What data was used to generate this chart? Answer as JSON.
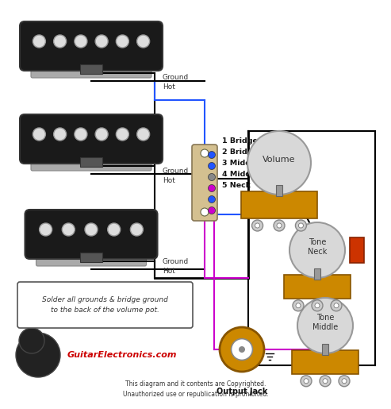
{
  "bg_color": "#ffffff",
  "switch_text": [
    "1 Bridge",
    "2 Bridge+Middle",
    "3 Middle",
    "4 Middle+Neck",
    "5 Neck"
  ],
  "solder_note": "Solder all grounds & bridge ground\nto the back of the volume pot.",
  "copyright_text": "This diagram and it contents are Copyrighted.\nUnauthorized use or republication is prohibited.",
  "wire_black": "#000000",
  "wire_blue": "#2255ff",
  "wire_magenta": "#cc00cc",
  "wire_gray": "#888888",
  "pot_body_color": "#d8d8d8",
  "pot_base_color": "#cc8800",
  "pot_lug_color": "#aaaaaa",
  "pickup_body_color": "#1a1a1a",
  "pickup_pole_color": "#cccccc",
  "capacitor_color": "#cc3300",
  "switch_body_color": "#d4c090",
  "switch_border_color": "#887755"
}
